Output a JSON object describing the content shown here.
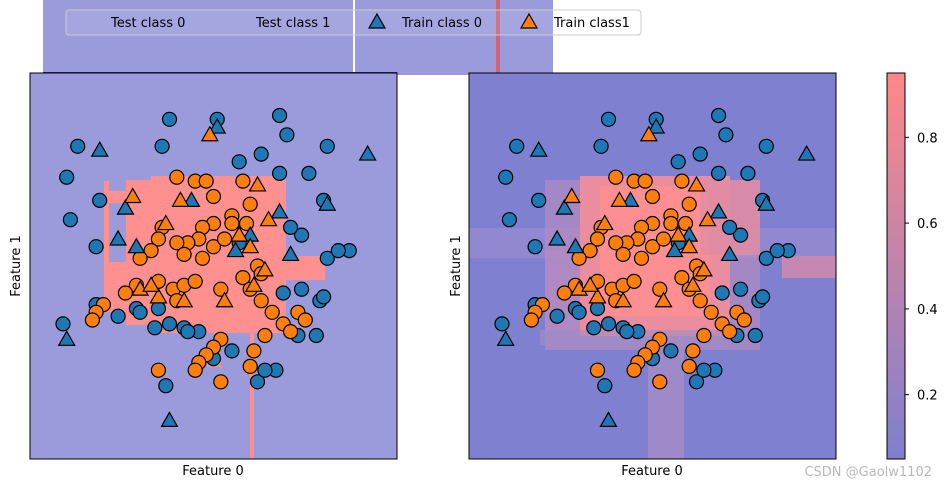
{
  "legend": {
    "entries": [
      {
        "label": "Test class 0",
        "marker": "circle",
        "color": "#1f77b4"
      },
      {
        "label": "Test class 1",
        "marker": "circle",
        "color": "#ff7f0e"
      },
      {
        "label": "Train class 0",
        "marker": "triangle",
        "color": "#1f77b4"
      },
      {
        "label": "Train class1",
        "marker": "triangle",
        "color": "#ff7f0e"
      }
    ]
  },
  "watermark": "CSDN @Gaolw1102",
  "colors": {
    "class0_region": "#9b9bdc",
    "class1_region": "#fe9090",
    "class0_marker": "#1f77b4",
    "class1_marker": "#ff7f0e",
    "cmap_low": "#7f7fcf",
    "cmap_high": "#ff8888"
  },
  "chart_data": [
    {
      "type": "scatter",
      "subtype": "decision-boundary",
      "xlabel": "Feature 0",
      "ylabel": "Feature 1",
      "xticks": false,
      "yticks": false,
      "xlim": [
        0,
        100
      ],
      "ylim": [
        0,
        100
      ],
      "series": [
        {
          "name": "Test class 0",
          "marker": "circle",
          "points": [
            [
              13,
              81
            ],
            [
              10,
              73
            ],
            [
              11,
              62
            ],
            [
              19,
              67
            ],
            [
              36,
              81
            ],
            [
              38,
              88
            ],
            [
              51,
              88
            ],
            [
              70,
              84
            ],
            [
              68,
              89
            ],
            [
              63,
              79
            ],
            [
              76,
              74
            ],
            [
              68,
              74
            ],
            [
              81,
              81
            ],
            [
              80,
              67
            ],
            [
              81,
              52
            ],
            [
              87,
              54
            ],
            [
              84,
              54
            ],
            [
              74,
              58
            ],
            [
              74,
              44
            ],
            [
              79,
              41
            ],
            [
              80,
              42
            ],
            [
              57,
              77
            ],
            [
              71,
              60
            ],
            [
              18,
              40
            ],
            [
              24,
              37
            ],
            [
              29,
              39
            ],
            [
              35,
              39
            ],
            [
              38,
              35
            ],
            [
              34,
              34
            ],
            [
              42,
              34
            ],
            [
              46,
              33
            ],
            [
              55,
              28
            ],
            [
              62,
              20
            ],
            [
              73,
              32
            ],
            [
              78,
              32
            ],
            [
              67,
              23
            ],
            [
              64,
              23
            ],
            [
              69,
              43
            ],
            [
              57,
              56
            ],
            [
              18,
              55
            ],
            [
              9,
              35
            ],
            [
              30,
              38
            ],
            [
              43,
              33
            ],
            [
              50,
              26
            ],
            [
              37,
              19
            ]
          ]
        },
        {
          "name": "Test class 1",
          "marker": "circle",
          "points": [
            [
              40,
              73
            ],
            [
              45,
              72
            ],
            [
              48,
              72
            ],
            [
              50,
              68
            ],
            [
              58,
              72
            ],
            [
              60,
              66
            ],
            [
              55,
              63
            ],
            [
              50,
              61
            ],
            [
              47,
              60
            ],
            [
              46,
              57
            ],
            [
              43,
              56
            ],
            [
              40,
              56
            ],
            [
              42,
              53
            ],
            [
              36,
              60
            ],
            [
              35,
              57
            ],
            [
              33,
              54
            ],
            [
              30,
              52
            ],
            [
              35,
              46
            ],
            [
              39,
              44
            ],
            [
              40,
              41
            ],
            [
              42,
              45
            ],
            [
              45,
              46
            ],
            [
              47,
              52
            ],
            [
              50,
              55
            ],
            [
              53,
              57
            ],
            [
              55,
              61
            ],
            [
              59,
              61
            ],
            [
              62,
              50
            ],
            [
              63,
              48
            ],
            [
              58,
              47
            ],
            [
              52,
              44
            ],
            [
              60,
              44
            ],
            [
              63,
              41
            ],
            [
              66,
              38
            ],
            [
              69,
              35
            ],
            [
              71,
              33
            ],
            [
              73,
              38
            ],
            [
              75,
              36
            ],
            [
              64,
              32
            ],
            [
              61,
              28
            ],
            [
              52,
              31
            ],
            [
              50,
              29
            ],
            [
              48,
              27
            ],
            [
              46,
              25
            ],
            [
              45,
              23
            ],
            [
              60,
              24
            ],
            [
              52,
              20
            ],
            [
              35,
              23
            ],
            [
              29,
              45
            ],
            [
              26,
              43
            ],
            [
              20,
              40
            ],
            [
              18,
              38
            ],
            [
              17,
              36
            ]
          ]
        },
        {
          "name": "Train class 0",
          "marker": "triangle",
          "points": [
            [
              19,
              80
            ],
            [
              26,
              65
            ],
            [
              29,
              55
            ],
            [
              51,
              86
            ],
            [
              68,
              64
            ],
            [
              71,
              53
            ],
            [
              81,
              66
            ],
            [
              92,
              79
            ],
            [
              60,
              58
            ],
            [
              24,
              57
            ],
            [
              44,
              67
            ],
            [
              10,
              31
            ],
            [
              38,
              10
            ],
            [
              56,
              54
            ]
          ]
        },
        {
          "name": "Train class1",
          "marker": "triangle",
          "points": [
            [
              49,
              84
            ],
            [
              41,
              67
            ],
            [
              28,
              68
            ],
            [
              37,
              61
            ],
            [
              30,
              44
            ],
            [
              42,
              41
            ],
            [
              35,
              42
            ],
            [
              53,
              41
            ],
            [
              57,
              58
            ],
            [
              62,
              71
            ],
            [
              64,
              49
            ],
            [
              61,
              45
            ],
            [
              65,
              62
            ],
            [
              60,
              55
            ],
            [
              33,
              45
            ]
          ]
        }
      ]
    },
    {
      "type": "scatter",
      "subtype": "probability-surface",
      "xlabel": "Feature 0",
      "ylabel": "Feature 1",
      "xticks": false,
      "yticks": false,
      "xlim": [
        0,
        100
      ],
      "ylim": [
        0,
        100
      ],
      "colorbar": {
        "ticks": [
          "0.2",
          "0.4",
          "0.6",
          "0.8"
        ],
        "tick_values": [
          0.2,
          0.4,
          0.6,
          0.8
        ],
        "range": [
          0.05,
          0.95
        ]
      },
      "series": "same as first plot"
    }
  ]
}
